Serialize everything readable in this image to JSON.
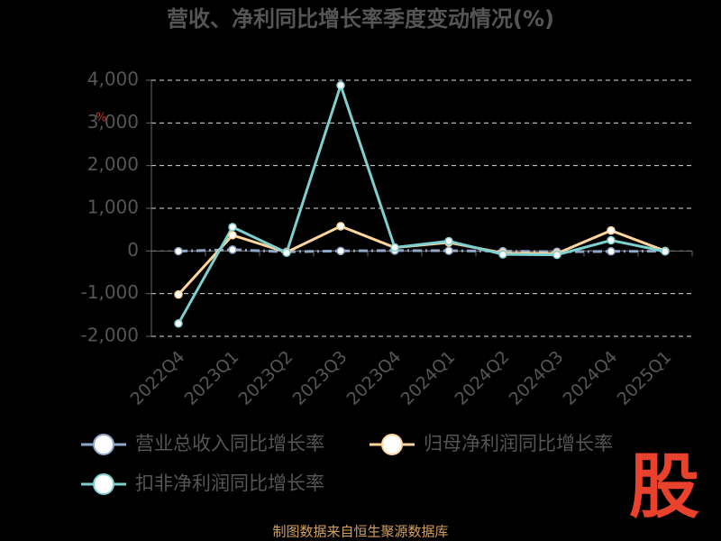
{
  "chart_data": {
    "type": "line",
    "title": "营收、净利同比增长率季度变动情况(%)",
    "categories": [
      "2022Q4",
      "2023Q1",
      "2023Q2",
      "2023Q3",
      "2023Q4",
      "2024Q1",
      "2024Q2",
      "2024Q3",
      "2024Q4",
      "2025Q1"
    ],
    "series": [
      {
        "name": "营业总收入同比增长率",
        "color": "#8fa7c9",
        "values": [
          -5,
          30,
          -20,
          0,
          10,
          5,
          -5,
          -20,
          -10,
          -5
        ]
      },
      {
        "name": "归母净利润同比增长率",
        "color": "#ffd59c",
        "values": [
          -1020,
          370,
          -30,
          580,
          80,
          200,
          -50,
          -60,
          480,
          0
        ]
      },
      {
        "name": "扣非净利润同比增长率",
        "color": "#7ecfd0",
        "values": [
          -1700,
          560,
          -40,
          3880,
          80,
          230,
          -80,
          -90,
          250,
          -10
        ]
      }
    ],
    "ylim": [
      -2000,
      4000
    ],
    "yticks": [
      {
        "value": -2000,
        "label": "-2,000"
      },
      {
        "value": -1000,
        "label": "-1,000"
      },
      0,
      {
        "value": 1000,
        "label": "1,000"
      },
      {
        "value": 2000,
        "label": "2,000"
      },
      {
        "value": 3000,
        "label": "3,000"
      },
      {
        "value": 4000,
        "label": "4,000"
      }
    ],
    "grid": true,
    "legend": "bottom",
    "y_unit_mark": "%",
    "source": "制图数据来自恒生聚源数据库",
    "watermark": "股"
  }
}
